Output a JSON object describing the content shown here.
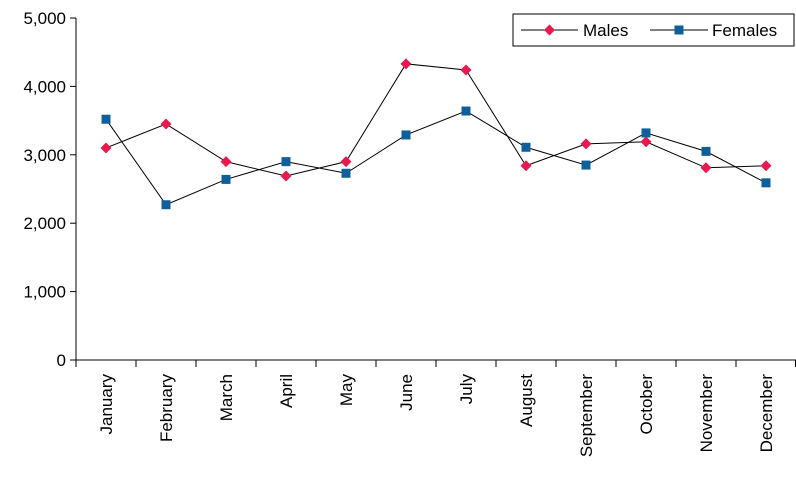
{
  "chart_data": {
    "type": "line",
    "title": "",
    "xlabel": "",
    "ylabel": "",
    "categories": [
      "January",
      "February",
      "March",
      "April",
      "May",
      "June",
      "July",
      "August",
      "September",
      "October",
      "November",
      "December"
    ],
    "ylim": [
      0,
      5000
    ],
    "yticks": [
      0,
      1000,
      2000,
      3000,
      4000,
      5000
    ],
    "ytick_labels": [
      "0",
      "1,000",
      "2,000",
      "3,000",
      "4,000",
      "5,000"
    ],
    "grid": false,
    "legend_position": "top-right",
    "series": [
      {
        "name": "Males",
        "marker": "diamond",
        "marker_color": "#e8194f",
        "line_color": "#000000",
        "values": [
          3100,
          3450,
          2900,
          2690,
          2900,
          4330,
          4240,
          2840,
          3160,
          3190,
          2810,
          2840
        ]
      },
      {
        "name": "Females",
        "marker": "square",
        "marker_color": "#0e5f9c",
        "line_color": "#000000",
        "values": [
          3520,
          2270,
          2640,
          2900,
          2730,
          3290,
          3640,
          3110,
          2850,
          3320,
          3050,
          2590
        ]
      }
    ]
  }
}
